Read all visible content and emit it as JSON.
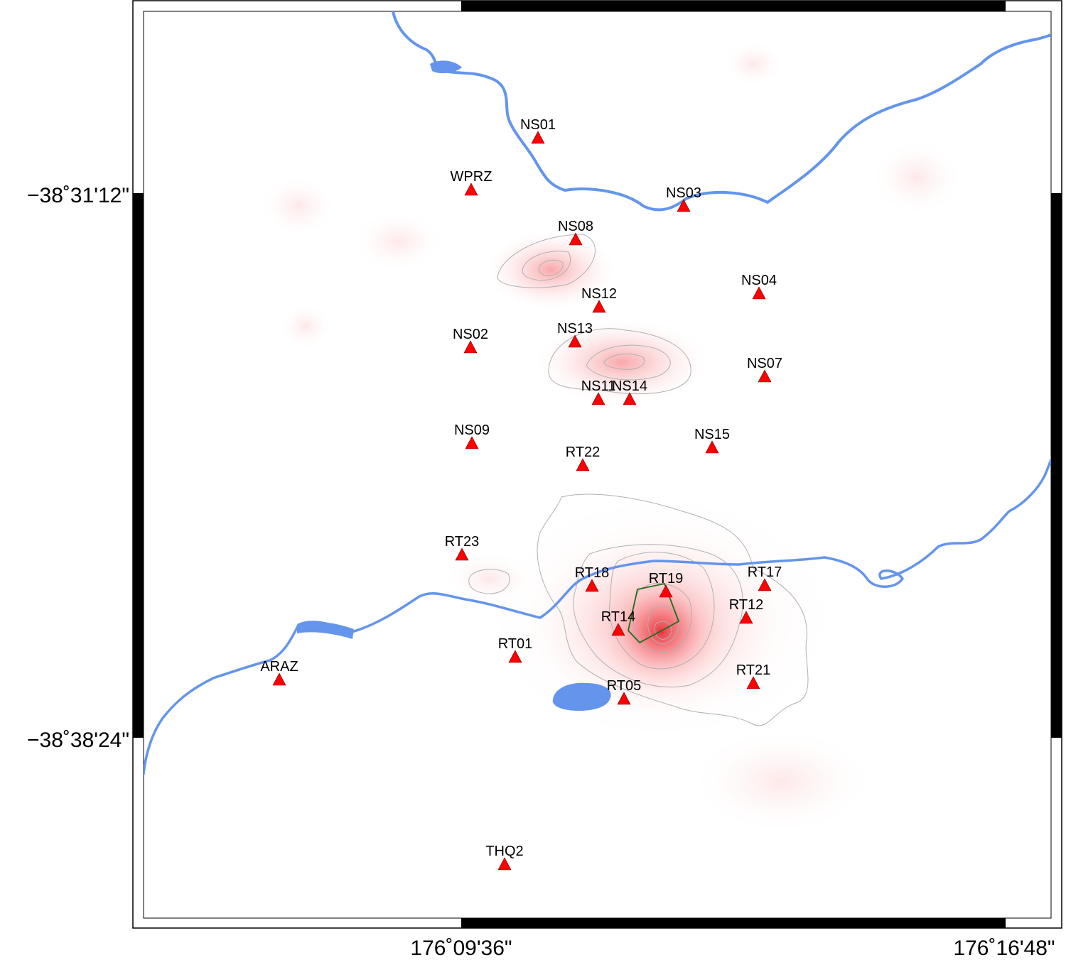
{
  "map": {
    "axes": {
      "y_ticks": [
        "−38˚31'12\"",
        "−38˚38'24\""
      ],
      "x_ticks": [
        "176˚09'36\"",
        "176˚16'48\""
      ]
    },
    "colors": {
      "water": "#6495ED",
      "station": "#FF0000",
      "density": "#FF0000",
      "contour": "#B0B0B0",
      "polygon": "#1F6B1F",
      "frame": "#000000"
    },
    "stations": [
      {
        "name": "NS01",
        "icon": "red-triangle-icon"
      },
      {
        "name": "WPRZ",
        "icon": "red-triangle-icon"
      },
      {
        "name": "NS03",
        "icon": "red-triangle-icon"
      },
      {
        "name": "NS08",
        "icon": "red-triangle-icon"
      },
      {
        "name": "NS04",
        "icon": "red-triangle-icon"
      },
      {
        "name": "NS12",
        "icon": "red-triangle-icon"
      },
      {
        "name": "NS02",
        "icon": "red-triangle-icon"
      },
      {
        "name": "NS13",
        "icon": "red-triangle-icon"
      },
      {
        "name": "NS07",
        "icon": "red-triangle-icon"
      },
      {
        "name": "NS11",
        "icon": "red-triangle-icon"
      },
      {
        "name": "NS14",
        "icon": "red-triangle-icon"
      },
      {
        "name": "NS09",
        "icon": "red-triangle-icon"
      },
      {
        "name": "NS15",
        "icon": "red-triangle-icon"
      },
      {
        "name": "RT22",
        "icon": "red-triangle-icon"
      },
      {
        "name": "RT23",
        "icon": "red-triangle-icon"
      },
      {
        "name": "RT18",
        "icon": "red-triangle-icon"
      },
      {
        "name": "RT19",
        "icon": "red-triangle-icon"
      },
      {
        "name": "RT17",
        "icon": "red-triangle-icon"
      },
      {
        "name": "RT12",
        "icon": "red-triangle-icon"
      },
      {
        "name": "RT14",
        "icon": "red-triangle-icon"
      },
      {
        "name": "RT01",
        "icon": "red-triangle-icon"
      },
      {
        "name": "ARAZ",
        "icon": "red-triangle-icon"
      },
      {
        "name": "RT21",
        "icon": "red-triangle-icon"
      },
      {
        "name": "RT05",
        "icon": "red-triangle-icon"
      },
      {
        "name": "THQ2",
        "icon": "red-triangle-icon"
      }
    ]
  }
}
